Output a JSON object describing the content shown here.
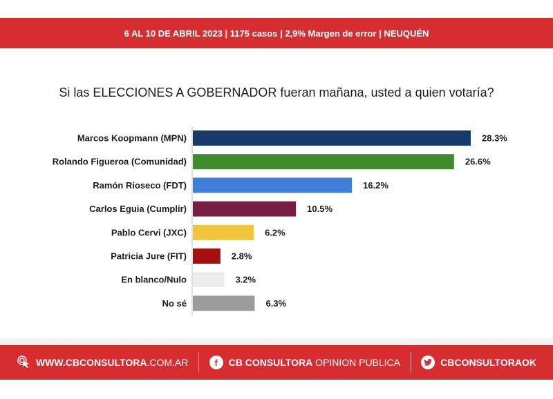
{
  "header": {
    "info_text": "6 AL 10 DE ABRIL 2023 | 1175 casos  |  2,9% Margen de error  | NEUQUÉN"
  },
  "chart_data": {
    "type": "bar",
    "orientation": "horizontal",
    "title": "Si las ELECCIONES A GOBERNADOR fueran mañana, usted a quien votaría?",
    "categories": [
      "Marcos Koopmann (MPN)",
      "Rolando Figueroa (Comunidad)",
      "Ramón Rioseco (FDT)",
      "Carlos Eguia (Cumplir)",
      "Pablo Cervi (JXC)",
      "Patricia Jure (FIT)",
      "En blanco/Nulo",
      "No sé"
    ],
    "values": [
      28.3,
      26.6,
      16.2,
      10.5,
      6.2,
      2.8,
      3.2,
      6.3
    ],
    "value_labels": [
      "28.3%",
      "26.6%",
      "16.2%",
      "10.5%",
      "6.2%",
      "2.8%",
      "3.2%",
      "6.3%"
    ],
    "colors": [
      "#173a6b",
      "#3f8a2c",
      "#3f7fd9",
      "#7a1d45",
      "#f0c53a",
      "#a50f0f",
      "#ececec",
      "#9b9b9b"
    ],
    "xlim": [
      0,
      30
    ],
    "grid": false,
    "legend": "none"
  },
  "footer": {
    "website_bold": "WWW.CBCONSULTORA",
    "website_rest": ".COM.AR",
    "facebook_bold": "CB CONSULTORA",
    "facebook_rest": "OPINION PUBLICA",
    "twitter_handle": "CBCONSULTORAOK"
  }
}
